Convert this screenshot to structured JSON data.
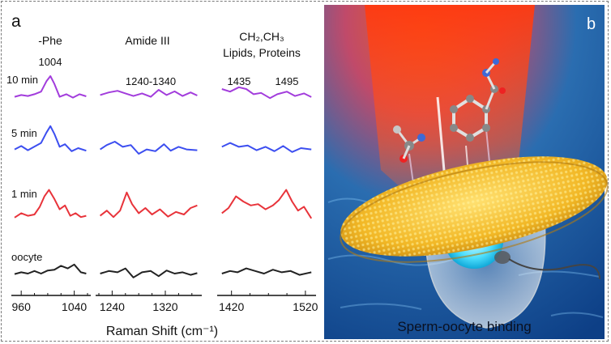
{
  "panel_a": {
    "letter": "a",
    "group_titles": [
      "-Phe",
      "Amide III",
      "CH₂,CH₃",
      "Lipids, Proteins"
    ],
    "peak_labels": [
      "1004",
      "1240-1340",
      "1435",
      "1495"
    ],
    "x_axis_label": "Raman Shift (cm⁻¹)"
  },
  "panel_b": {
    "letter": "b",
    "caption": "Sperm-oocyte binding"
  },
  "chart_data": {
    "type": "line",
    "title": "",
    "xlabel": "Raman Shift (cm⁻¹)",
    "ylabel": "",
    "grid": false,
    "legend": "none",
    "segments": [
      {
        "title": "-Phe",
        "xlim": [
          950,
          1060
        ],
        "ticks": [
          960,
          1040
        ],
        "peak_label": "1004"
      },
      {
        "title": "Amide III",
        "xlim": [
          1220,
          1370
        ],
        "ticks": [
          1240,
          1320
        ],
        "peak_label": "1240-1340"
      },
      {
        "title": "CH₂,CH₃ Lipids, Proteins",
        "xlim": [
          1405,
          1530
        ],
        "ticks": [
          1420,
          1520
        ],
        "peak_label": "1435 1495"
      }
    ],
    "series": [
      {
        "name": "10 min",
        "color": "#a23cdc",
        "segments": [
          [
            [
              950,
              -0.05
            ],
            [
              960,
              0.02
            ],
            [
              970,
              -0.02
            ],
            [
              980,
              0.05
            ],
            [
              990,
              0.15
            ],
            [
              998,
              0.55
            ],
            [
              1004,
              0.75
            ],
            [
              1010,
              0.45
            ],
            [
              1018,
              -0.05
            ],
            [
              1028,
              0.05
            ],
            [
              1038,
              -0.08
            ],
            [
              1048,
              0.05
            ],
            [
              1058,
              -0.03
            ]
          ],
          [
            [
              1222,
              0.02
            ],
            [
              1235,
              0.12
            ],
            [
              1248,
              0.18
            ],
            [
              1260,
              0.08
            ],
            [
              1272,
              -0.02
            ],
            [
              1285,
              0.08
            ],
            [
              1298,
              -0.05
            ],
            [
              1310,
              0.22
            ],
            [
              1322,
              0.02
            ],
            [
              1334,
              0.16
            ],
            [
              1346,
              -0.02
            ],
            [
              1358,
              0.12
            ],
            [
              1368,
              0.0
            ]
          ],
          [
            [
              1407,
              0.25
            ],
            [
              1418,
              0.15
            ],
            [
              1430,
              0.32
            ],
            [
              1440,
              0.25
            ],
            [
              1450,
              0.05
            ],
            [
              1460,
              0.1
            ],
            [
              1472,
              -0.1
            ],
            [
              1482,
              0.05
            ],
            [
              1495,
              0.15
            ],
            [
              1506,
              -0.02
            ],
            [
              1518,
              0.08
            ],
            [
              1528,
              -0.06
            ]
          ]
        ]
      },
      {
        "name": "5 min",
        "color": "#3c4ef0",
        "segments": [
          [
            [
              950,
              -0.05
            ],
            [
              960,
              0.08
            ],
            [
              970,
              -0.08
            ],
            [
              980,
              0.06
            ],
            [
              990,
              0.2
            ],
            [
              998,
              0.6
            ],
            [
              1004,
              0.85
            ],
            [
              1010,
              0.55
            ],
            [
              1018,
              0.05
            ],
            [
              1026,
              0.15
            ],
            [
              1036,
              -0.12
            ],
            [
              1046,
              0.0
            ],
            [
              1058,
              -0.1
            ]
          ],
          [
            [
              1222,
              -0.05
            ],
            [
              1232,
              0.12
            ],
            [
              1244,
              0.25
            ],
            [
              1256,
              0.05
            ],
            [
              1268,
              0.12
            ],
            [
              1280,
              -0.22
            ],
            [
              1292,
              -0.05
            ],
            [
              1305,
              -0.12
            ],
            [
              1318,
              0.15
            ],
            [
              1328,
              -0.1
            ],
            [
              1340,
              0.05
            ],
            [
              1352,
              -0.05
            ],
            [
              1368,
              -0.08
            ]
          ],
          [
            [
              1407,
              0.05
            ],
            [
              1418,
              0.2
            ],
            [
              1430,
              0.05
            ],
            [
              1442,
              0.1
            ],
            [
              1454,
              -0.08
            ],
            [
              1466,
              0.05
            ],
            [
              1478,
              -0.12
            ],
            [
              1490,
              0.08
            ],
            [
              1502,
              -0.15
            ],
            [
              1514,
              0.0
            ],
            [
              1528,
              -0.05
            ]
          ]
        ]
      },
      {
        "name": "1 min",
        "color": "#e8333a",
        "segments": [
          [
            [
              950,
              -0.12
            ],
            [
              960,
              0.05
            ],
            [
              970,
              -0.05
            ],
            [
              980,
              0.0
            ],
            [
              988,
              0.3
            ],
            [
              995,
              0.7
            ],
            [
              1002,
              0.95
            ],
            [
              1010,
              0.6
            ],
            [
              1018,
              0.2
            ],
            [
              1026,
              0.35
            ],
            [
              1034,
              -0.05
            ],
            [
              1042,
              0.05
            ],
            [
              1050,
              -0.1
            ],
            [
              1058,
              -0.05
            ]
          ],
          [
            [
              1222,
              -0.05
            ],
            [
              1232,
              0.15
            ],
            [
              1242,
              -0.1
            ],
            [
              1252,
              0.15
            ],
            [
              1262,
              0.85
            ],
            [
              1270,
              0.4
            ],
            [
              1280,
              0.05
            ],
            [
              1290,
              0.25
            ],
            [
              1300,
              0.0
            ],
            [
              1312,
              0.2
            ],
            [
              1324,
              -0.08
            ],
            [
              1336,
              0.1
            ],
            [
              1348,
              0.0
            ],
            [
              1358,
              0.25
            ],
            [
              1368,
              0.35
            ]
          ],
          [
            [
              1407,
              0.05
            ],
            [
              1416,
              0.25
            ],
            [
              1426,
              0.7
            ],
            [
              1436,
              0.5
            ],
            [
              1446,
              0.35
            ],
            [
              1456,
              0.4
            ],
            [
              1466,
              0.2
            ],
            [
              1476,
              0.35
            ],
            [
              1484,
              0.55
            ],
            [
              1494,
              0.95
            ],
            [
              1502,
              0.5
            ],
            [
              1510,
              0.15
            ],
            [
              1518,
              0.3
            ],
            [
              1528,
              -0.15
            ]
          ]
        ]
      },
      {
        "name": "oocyte",
        "color": "#222222",
        "segments": [
          [
            [
              950,
              -0.02
            ],
            [
              960,
              0.05
            ],
            [
              970,
              0.0
            ],
            [
              980,
              0.1
            ],
            [
              990,
              0.0
            ],
            [
              1000,
              0.12
            ],
            [
              1010,
              0.15
            ],
            [
              1020,
              0.3
            ],
            [
              1030,
              0.2
            ],
            [
              1040,
              0.35
            ],
            [
              1050,
              0.05
            ],
            [
              1058,
              0.0
            ]
          ],
          [
            [
              1222,
              0.0
            ],
            [
              1235,
              0.1
            ],
            [
              1248,
              0.05
            ],
            [
              1260,
              0.2
            ],
            [
              1272,
              -0.15
            ],
            [
              1285,
              0.05
            ],
            [
              1298,
              0.1
            ],
            [
              1310,
              -0.1
            ],
            [
              1322,
              0.12
            ],
            [
              1334,
              0.0
            ],
            [
              1346,
              0.05
            ],
            [
              1358,
              -0.05
            ],
            [
              1368,
              0.02
            ]
          ],
          [
            [
              1407,
              0.0
            ],
            [
              1418,
              0.1
            ],
            [
              1428,
              0.05
            ],
            [
              1440,
              0.2
            ],
            [
              1452,
              0.1
            ],
            [
              1464,
              0.0
            ],
            [
              1476,
              0.15
            ],
            [
              1488,
              0.05
            ],
            [
              1500,
              0.1
            ],
            [
              1512,
              -0.05
            ],
            [
              1528,
              0.05
            ]
          ]
        ]
      }
    ]
  }
}
